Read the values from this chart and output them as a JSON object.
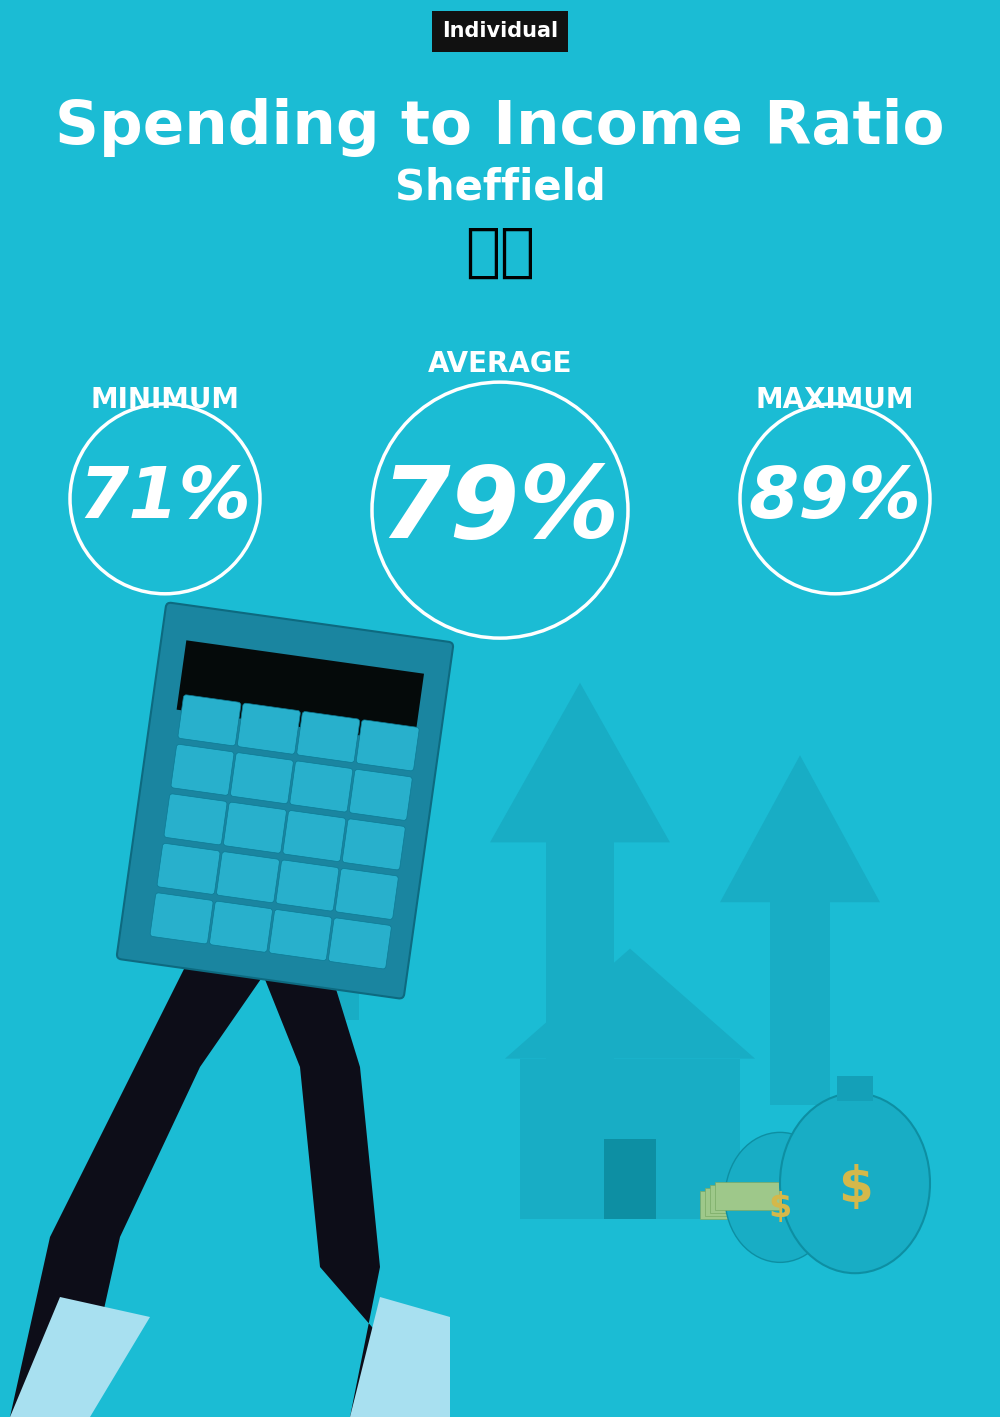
{
  "bg_color": "#1bbcd4",
  "title": "Spending to Income Ratio",
  "subtitle": "Sheffield",
  "label_tag": "Individual",
  "label_tag_bg": "#111111",
  "label_tag_color": "#ffffff",
  "min_label": "MINIMUM",
  "avg_label": "AVERAGE",
  "max_label": "MAXIMUM",
  "min_value": "71%",
  "avg_value": "79%",
  "max_value": "89%",
  "circle_color": "white",
  "text_color": "white",
  "title_fontsize": 44,
  "subtitle_fontsize": 30,
  "value_fontsize_small": 52,
  "value_fontsize_large": 72,
  "label_fontsize": 20,
  "arrow_color": "#18adc5",
  "house_color": "#18adc5",
  "calc_body_color": "#1a8faa",
  "calc_screen_color": "#050a0a",
  "calc_btn_color": "#2ab5d0",
  "hand_color": "#0d0d18",
  "cuff_color": "#a8e0f0"
}
